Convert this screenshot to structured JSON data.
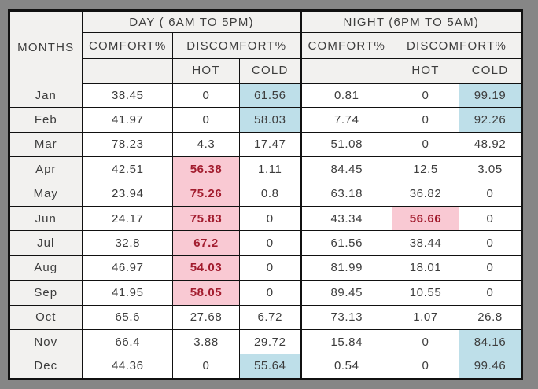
{
  "colors": {
    "frame_gray": "#868686",
    "header_bg": "#f2f1ef",
    "cell_bg": "#ffffff",
    "border": "#111111",
    "text": "#3d3d3d",
    "hot_bg": "#f9c9d3",
    "hot_text": "#a21c2e",
    "cold_bg": "#bedfe9"
  },
  "table": {
    "months_label": "MONTHS",
    "day_group": "DAY ( 6AM TO 5PM)",
    "night_group": "NIGHT (6PM TO 5AM)",
    "comfort_label": "COMFORT%",
    "discomfort_label": "DISCOMFORT%",
    "hot_label": "HOT",
    "cold_label": "COLD",
    "columns": [
      "MONTHS",
      "DAY COMFORT%",
      "DAY DISCOMFORT% HOT",
      "DAY DISCOMFORT% COLD",
      "NIGHT COMFORT%",
      "NIGHT DISCOMFORT% HOT",
      "NIGHT DISCOMFORT% COLD"
    ],
    "rows": [
      {
        "month": "Jan",
        "values": [
          "38.45",
          "0",
          "61.56",
          "0.81",
          "0",
          "99.19"
        ],
        "highlight": {
          "2": "cold",
          "5": "cold"
        }
      },
      {
        "month": "Feb",
        "values": [
          "41.97",
          "0",
          "58.03",
          "7.74",
          "0",
          "92.26"
        ],
        "highlight": {
          "2": "cold",
          "5": "cold"
        }
      },
      {
        "month": "Mar",
        "values": [
          "78.23",
          "4.3",
          "17.47",
          "51.08",
          "0",
          "48.92"
        ],
        "highlight": {}
      },
      {
        "month": "Apr",
        "values": [
          "42.51",
          "56.38",
          "1.11",
          "84.45",
          "12.5",
          "3.05"
        ],
        "highlight": {
          "1": "hot"
        }
      },
      {
        "month": "May",
        "values": [
          "23.94",
          "75.26",
          "0.8",
          "63.18",
          "36.82",
          "0"
        ],
        "highlight": {
          "1": "hot"
        }
      },
      {
        "month": "Jun",
        "values": [
          "24.17",
          "75.83",
          "0",
          "43.34",
          "56.66",
          "0"
        ],
        "highlight": {
          "1": "hot",
          "4": "hot"
        }
      },
      {
        "month": "Jul",
        "values": [
          "32.8",
          "67.2",
          "0",
          "61.56",
          "38.44",
          "0"
        ],
        "highlight": {
          "1": "hot"
        }
      },
      {
        "month": "Aug",
        "values": [
          "46.97",
          "54.03",
          "0",
          "81.99",
          "18.01",
          "0"
        ],
        "highlight": {
          "1": "hot"
        }
      },
      {
        "month": "Sep",
        "values": [
          "41.95",
          "58.05",
          "0",
          "89.45",
          "10.55",
          "0"
        ],
        "highlight": {
          "1": "hot"
        }
      },
      {
        "month": "Oct",
        "values": [
          "65.6",
          "27.68",
          "6.72",
          "73.13",
          "1.07",
          "26.8"
        ],
        "highlight": {}
      },
      {
        "month": "Nov",
        "values": [
          "66.4",
          "3.88",
          "29.72",
          "15.84",
          "0",
          "84.16"
        ],
        "highlight": {
          "5": "cold"
        }
      },
      {
        "month": "Dec",
        "values": [
          "44.36",
          "0",
          "55.64",
          "0.54",
          "0",
          "99.46"
        ],
        "highlight": {
          "2": "cold",
          "5": "cold"
        }
      }
    ]
  }
}
